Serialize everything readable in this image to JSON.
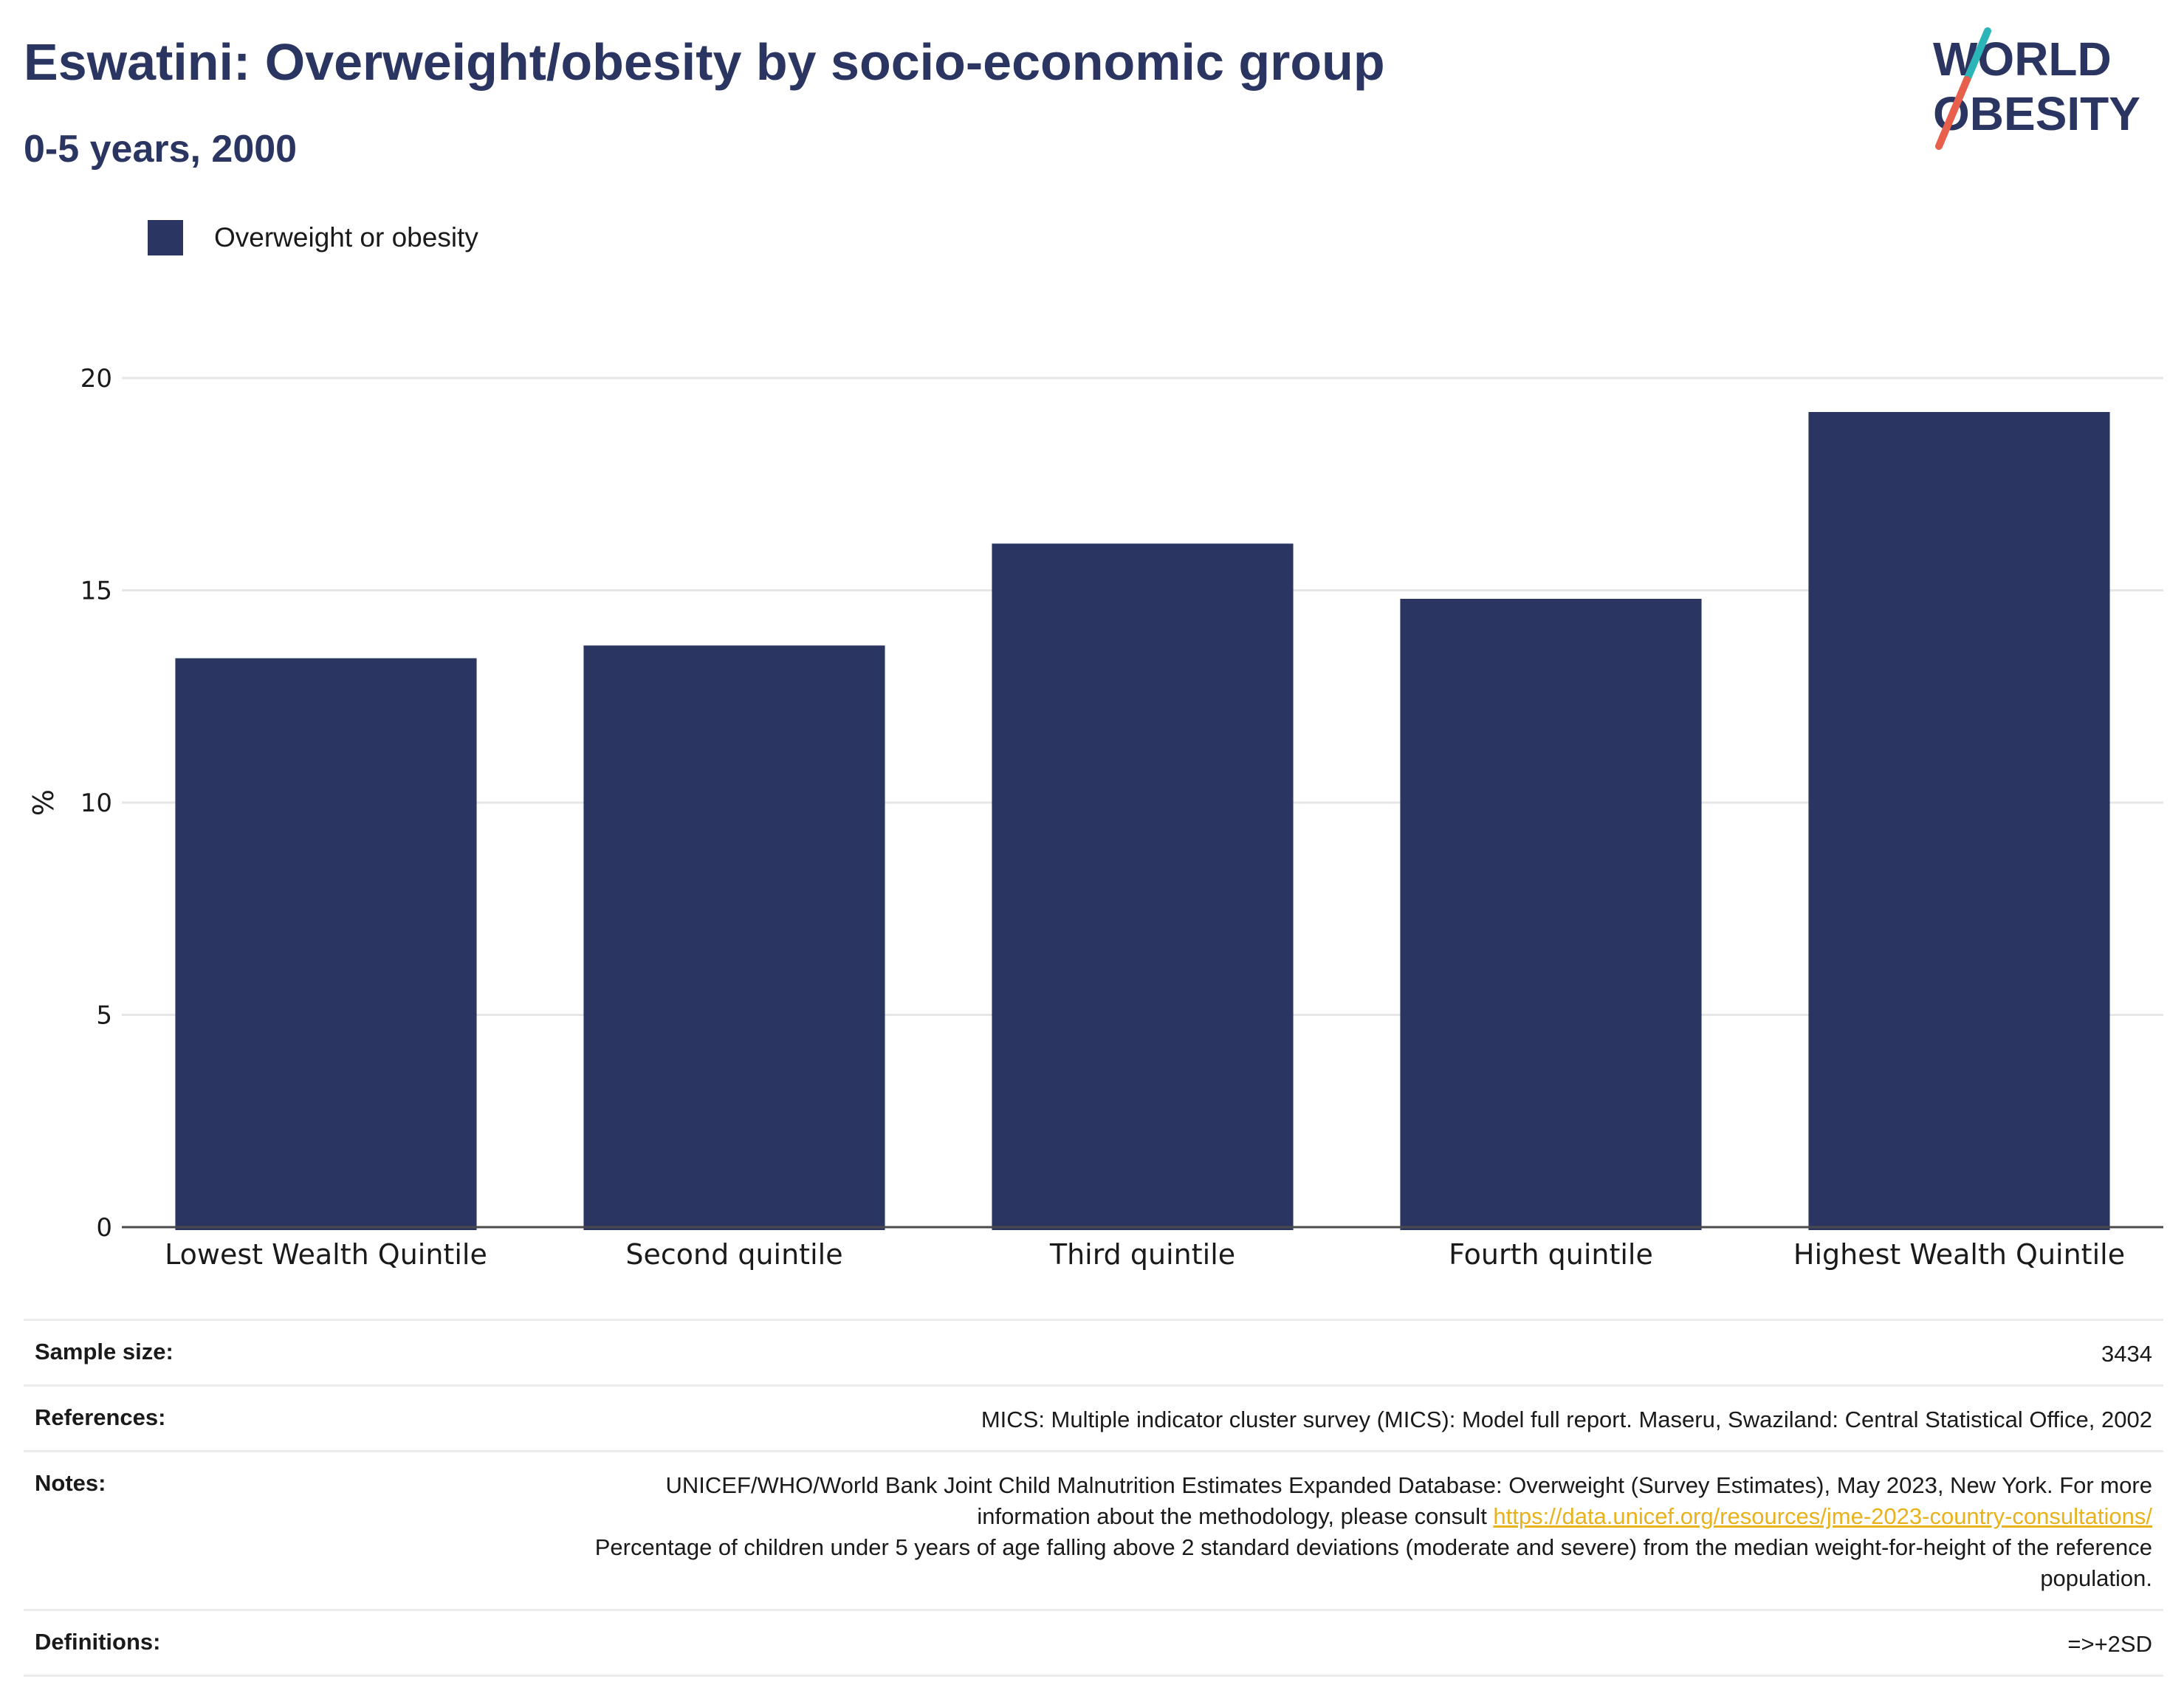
{
  "header": {
    "title": "Eswatini: Overweight/obesity by socio-economic group",
    "subtitle": "0-5 years, 2000"
  },
  "logo": {
    "line1": "WORLD",
    "line2": "OBESITY",
    "colors": {
      "navy": "#2a3561",
      "teal": "#2bb5b9",
      "coral": "#e8604c"
    }
  },
  "legend": {
    "label": "Overweight or obesity"
  },
  "colors": {
    "bar": "#2a3561",
    "grid": "#e6e6e6",
    "link": "#e8b21c"
  },
  "chart_data": {
    "type": "bar",
    "categories": [
      "Lowest Wealth Quintile",
      "Second quintile",
      "Third quintile",
      "Fourth quintile",
      "Highest Wealth Quintile"
    ],
    "series": [
      {
        "name": "Overweight or obesity",
        "values": [
          13.4,
          13.7,
          16.1,
          14.8,
          19.2
        ]
      }
    ],
    "ylabel": "%",
    "ylim": [
      0,
      20
    ],
    "yticks": [
      0,
      5,
      10,
      15,
      20
    ],
    "grid": true,
    "legend": "top-left"
  },
  "info": {
    "sample_size": {
      "label": "Sample size:",
      "value": "3434"
    },
    "references": {
      "label": "References:",
      "value": "MICS: Multiple indicator cluster survey (MICS): Model full report. Maseru, Swaziland: Central Statistical Office, 2002"
    },
    "notes": {
      "label": "Notes:",
      "text1": "UNICEF/WHO/World Bank Joint Child Malnutrition Estimates Expanded Database: Overweight (Survey Estimates), May 2023, New York. For more information about the methodology, please consult ",
      "link": "https://data.unicef.org/resources/jme-2023-country-consultations/",
      "text2": "Percentage of children under 5 years of age falling above 2 standard deviations (moderate and severe) from the median weight-for-height of the reference population."
    },
    "definitions": {
      "label": "Definitions:",
      "value": "=>+2SD"
    }
  }
}
